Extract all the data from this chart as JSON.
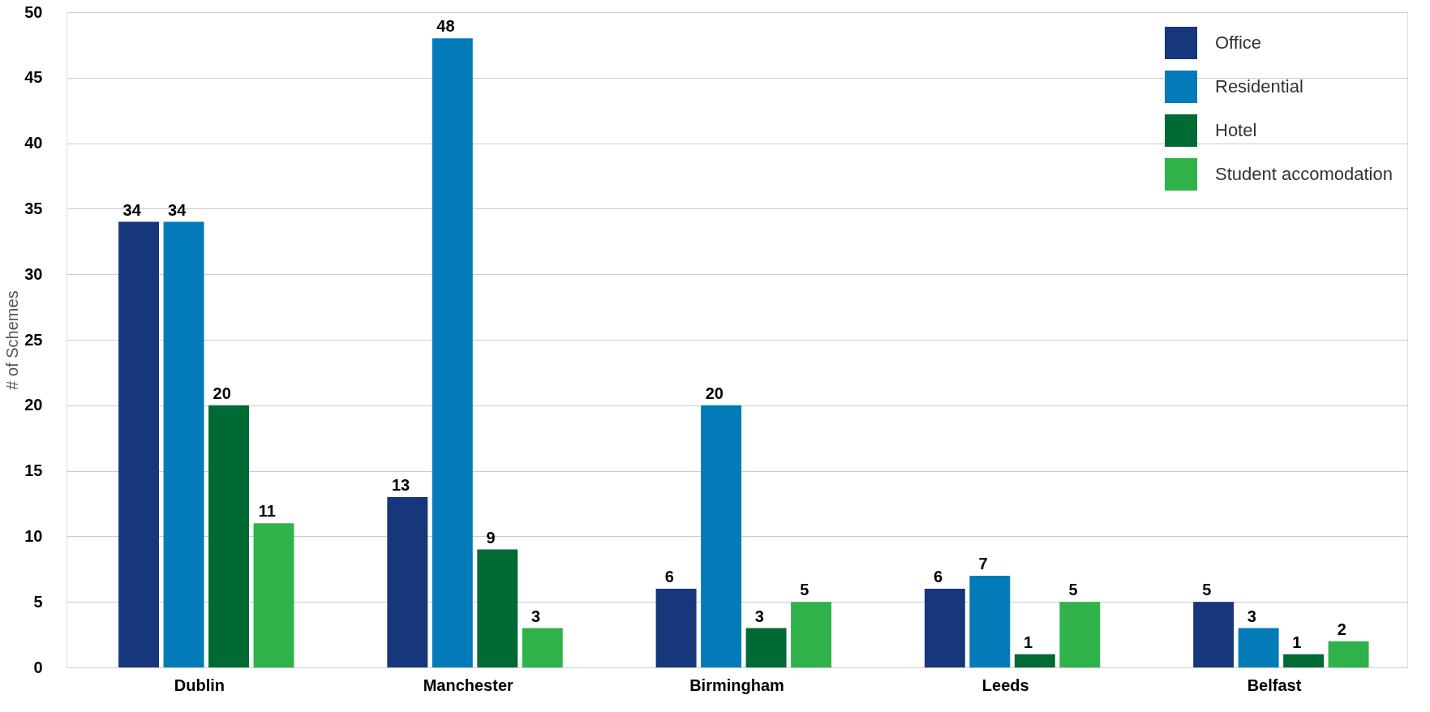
{
  "chart_data": {
    "type": "bar",
    "ylabel": "# of Schemes",
    "categories": [
      "Dublin",
      "Manchester",
      "Birmingham",
      "Leeds",
      "Belfast"
    ],
    "series": [
      {
        "name": "Office",
        "color": "#17377c",
        "values": [
          34,
          13,
          6,
          6,
          5
        ]
      },
      {
        "name": "Residential",
        "color": "#027bb8",
        "values": [
          34,
          48,
          20,
          7,
          3
        ]
      },
      {
        "name": "Hotel",
        "color": "#006a35",
        "values": [
          20,
          9,
          3,
          1,
          1
        ]
      },
      {
        "name": "Student accomodation",
        "color": "#30b24a",
        "values": [
          11,
          3,
          5,
          5,
          2
        ]
      }
    ],
    "ylim": [
      0,
      50
    ],
    "yticks": [
      0,
      5,
      10,
      15,
      20,
      25,
      30,
      35,
      40,
      45,
      50
    ],
    "grid": "y",
    "legend": "top right",
    "data_labels": true
  }
}
